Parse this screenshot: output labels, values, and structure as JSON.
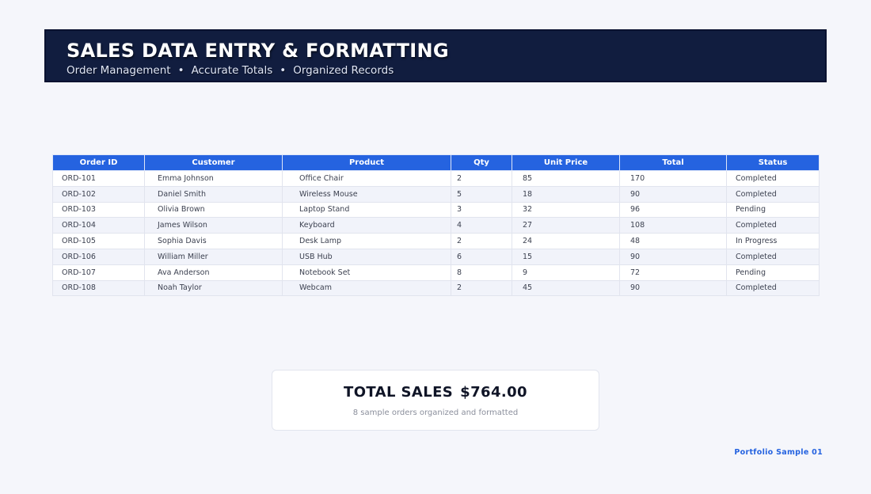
{
  "header": {
    "title": "SALES DATA ENTRY & FORMATTING",
    "subtitle_items": [
      "Order Management",
      "Accurate Totals",
      "Organized Records"
    ],
    "separator": "•"
  },
  "table": {
    "columns": [
      "Order ID",
      "Customer",
      "Product",
      "Qty",
      "Unit Price",
      "Total",
      "Status"
    ],
    "rows": [
      [
        "ORD-101",
        "Emma Johnson",
        "Office Chair",
        "2",
        "85",
        "170",
        "Completed"
      ],
      [
        "ORD-102",
        "Daniel Smith",
        "Wireless Mouse",
        "5",
        "18",
        "90",
        "Completed"
      ],
      [
        "ORD-103",
        "Olivia Brown",
        "Laptop Stand",
        "3",
        "32",
        "96",
        "Pending"
      ],
      [
        "ORD-104",
        "James Wilson",
        "Keyboard",
        "4",
        "27",
        "108",
        "Completed"
      ],
      [
        "ORD-105",
        "Sophia Davis",
        "Desk Lamp",
        "2",
        "24",
        "48",
        "In Progress"
      ],
      [
        "ORD-106",
        "William Miller",
        "USB Hub",
        "6",
        "15",
        "90",
        "Completed"
      ],
      [
        "ORD-107",
        "Ava Anderson",
        "Notebook Set",
        "8",
        "9",
        "72",
        "Pending"
      ],
      [
        "ORD-108",
        "Noah Taylor",
        "Webcam",
        "2",
        "45",
        "90",
        "Completed"
      ]
    ]
  },
  "summary": {
    "label": "TOTAL SALES",
    "amount": "$764.00",
    "note": "8 sample orders organized and formatted"
  },
  "footer": {
    "label": "Portfolio Sample 01"
  },
  "colors": {
    "header_bg": "#111d3f",
    "table_header_bg": "#2563e0",
    "accent": "#2563e0",
    "page_bg": "#f5f6fb"
  }
}
